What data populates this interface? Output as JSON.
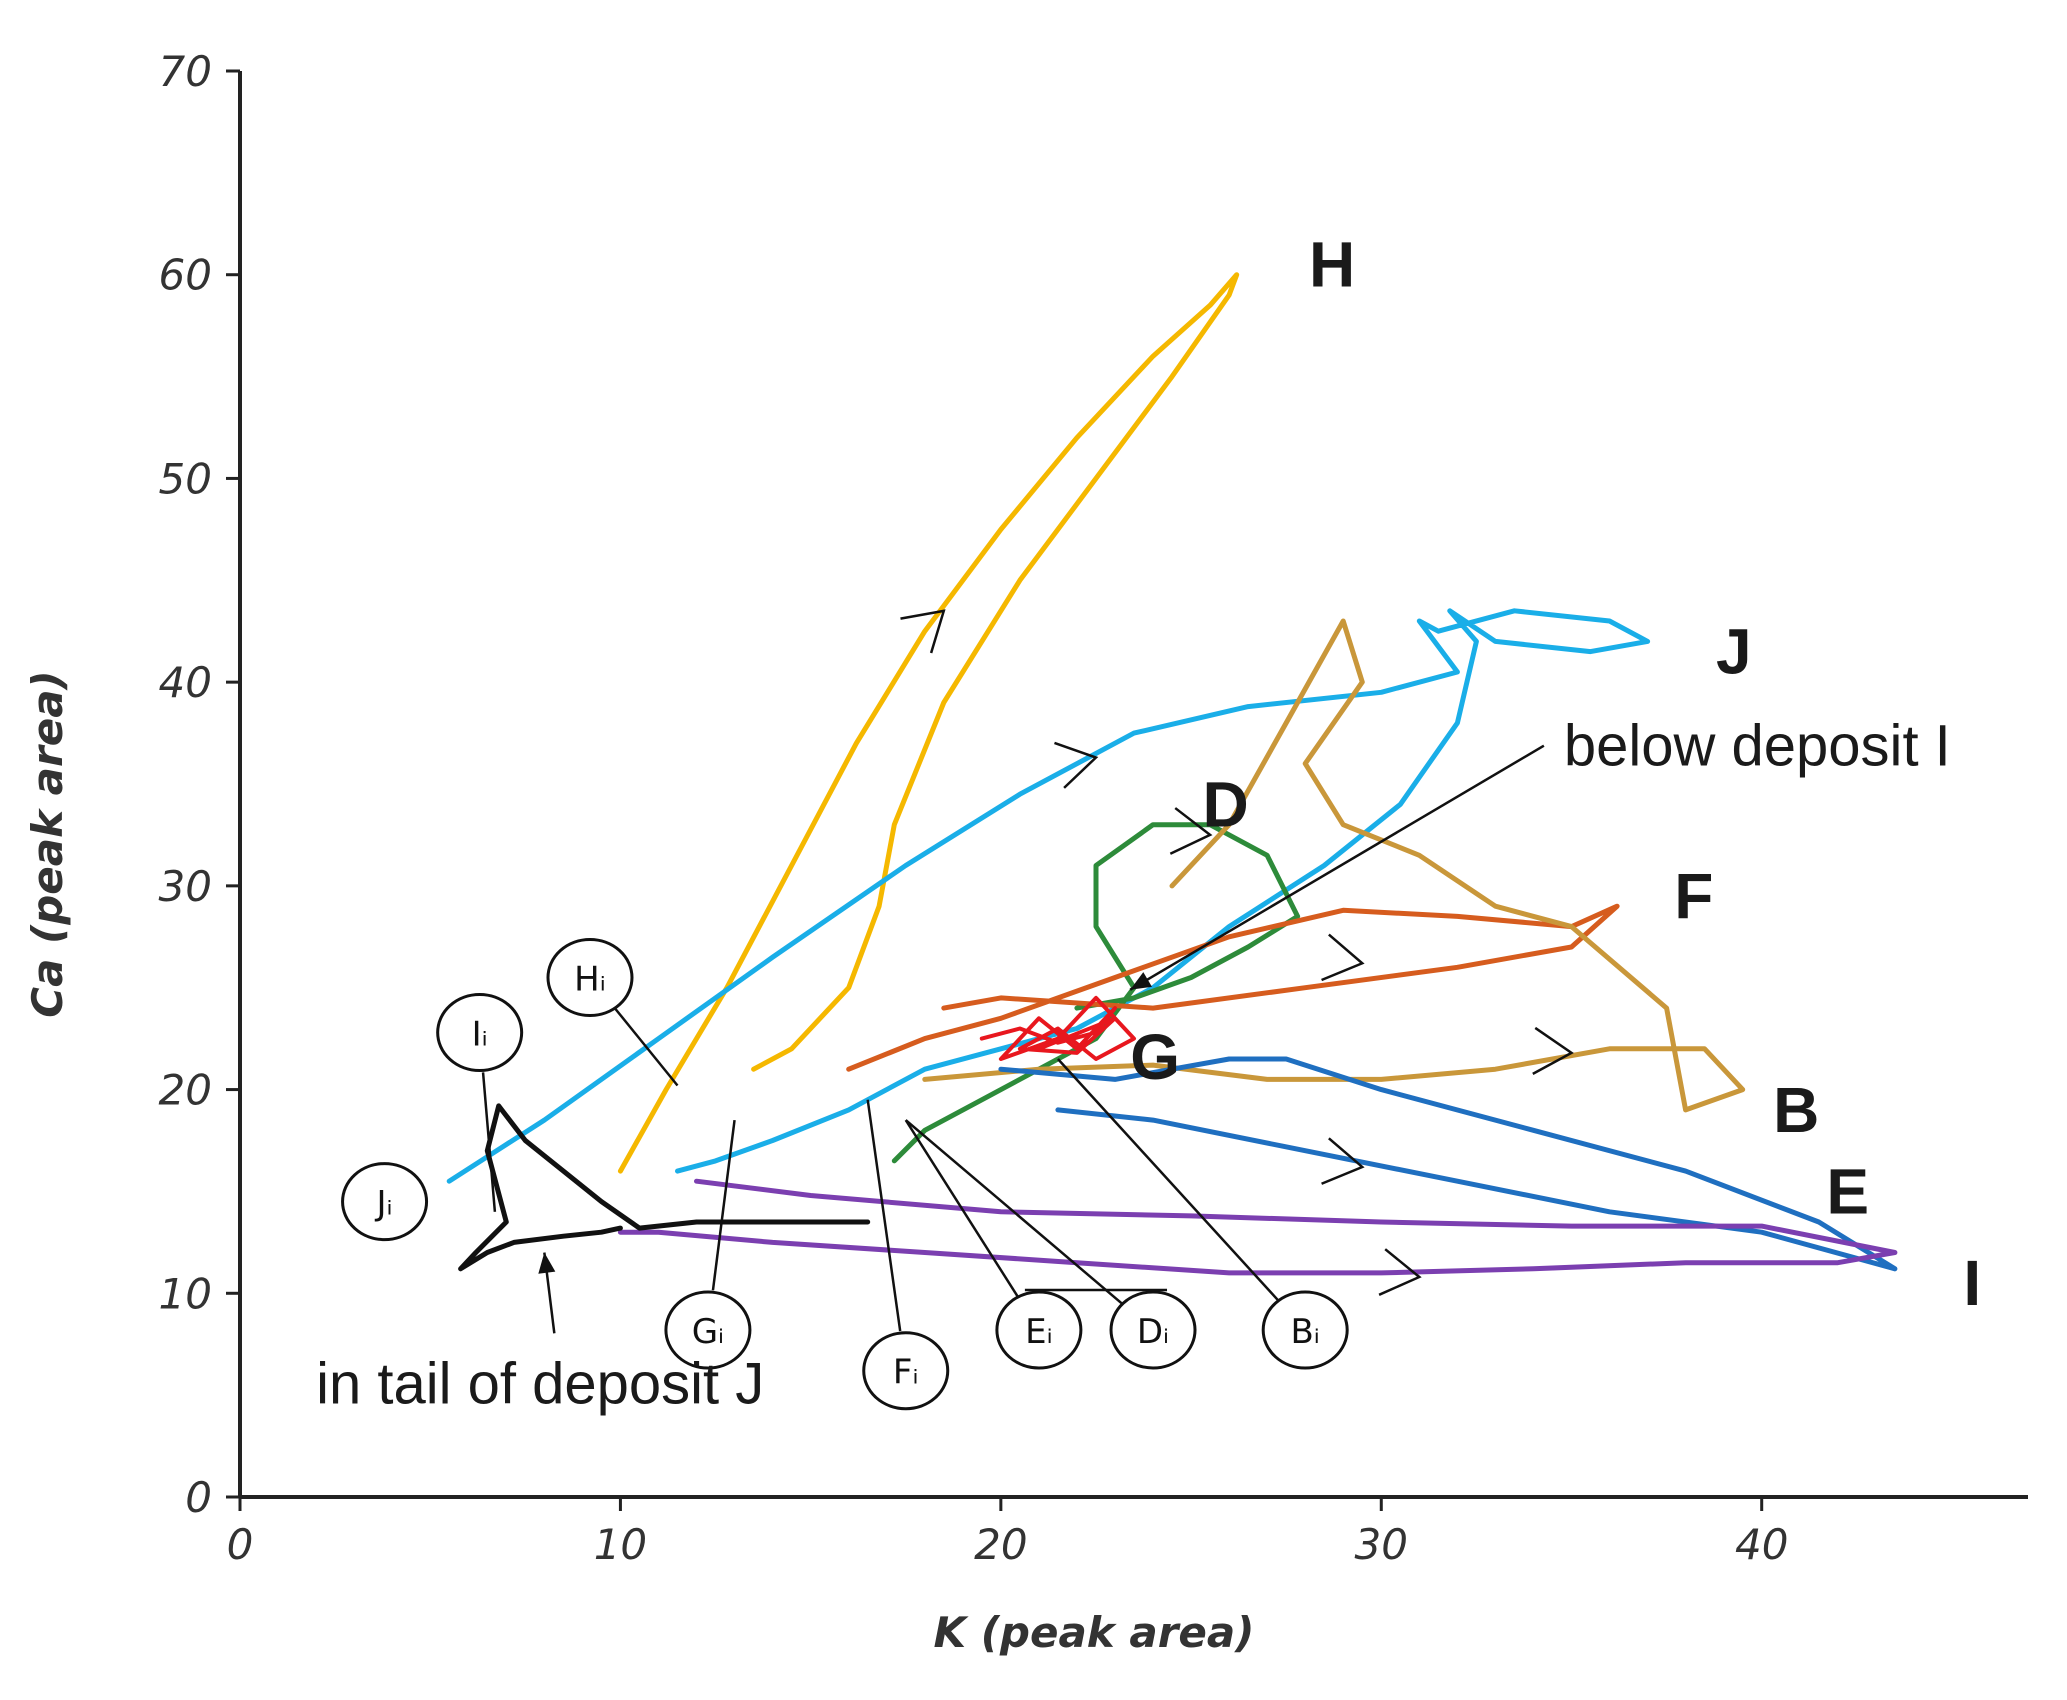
{
  "chart_data": {
    "type": "line",
    "xlabel": "K (peak area)",
    "ylabel": "Ca (peak area)",
    "xlim": [
      0,
      47
    ],
    "ylim": [
      0,
      70
    ],
    "xticks": [
      0,
      10,
      20,
      30,
      40
    ],
    "yticks": [
      0,
      10,
      20,
      30,
      40,
      50,
      60,
      70
    ],
    "grid": false,
    "series": [
      {
        "name": "H",
        "color": "#f5b800",
        "label_at": [
          28.1,
          60.5
        ],
        "x": [
          10.0,
          11.2,
          12.8,
          14.5,
          16.2,
          18.0,
          20.0,
          22.0,
          24.0,
          25.5,
          26.2,
          26.0,
          24.5,
          22.5,
          20.5,
          18.5,
          17.2,
          16.8,
          16.0,
          14.5,
          13.5
        ],
        "y": [
          16.0,
          20.0,
          25.0,
          31.0,
          37.0,
          42.5,
          47.5,
          52.0,
          56.0,
          58.5,
          60.0,
          59.0,
          55.0,
          50.0,
          45.0,
          39.0,
          33.0,
          29.0,
          25.0,
          22.0,
          21.0
        ]
      },
      {
        "name": "J",
        "color": "#1aaee8",
        "label_at": [
          38.8,
          41.5
        ],
        "x": [
          5.5,
          8.0,
          11.0,
          14.0,
          17.5,
          20.5,
          23.5,
          26.5,
          30.0,
          32.0,
          31.0,
          31.5,
          33.5,
          36.0,
          37.0,
          35.5,
          33.0,
          31.8,
          32.5,
          32.0,
          30.5,
          28.5,
          26.0,
          24.0,
          22.0,
          20.0,
          18.0,
          16.0,
          14.0,
          12.5,
          11.5
        ],
        "y": [
          15.5,
          18.5,
          22.5,
          26.5,
          31.0,
          34.5,
          37.5,
          38.8,
          39.5,
          40.5,
          43.0,
          42.5,
          43.5,
          43.0,
          42.0,
          41.5,
          42.0,
          43.5,
          42.0,
          38.0,
          34.0,
          31.0,
          28.0,
          25.0,
          23.0,
          22.0,
          21.0,
          19.0,
          17.5,
          16.5,
          16.0
        ]
      },
      {
        "name": "D",
        "color": "#2d8b3a",
        "label_at": [
          25.3,
          34.0
        ],
        "x": [
          17.2,
          18.0,
          19.5,
          21.0,
          22.5,
          23.5,
          22.5,
          22.5,
          24.0,
          25.5,
          27.0,
          27.8,
          26.5,
          25.0,
          23.5,
          22.0
        ],
        "y": [
          16.5,
          18.0,
          19.5,
          21.0,
          22.5,
          25.0,
          28.0,
          31.0,
          33.0,
          33.0,
          31.5,
          28.5,
          27.0,
          25.5,
          24.5,
          24.0
        ]
      },
      {
        "name": "F",
        "color": "#d65c1e",
        "label_at": [
          37.7,
          29.5
        ],
        "x": [
          16.0,
          18.0,
          20.0,
          23.0,
          26.0,
          29.0,
          32.0,
          35.0,
          36.2,
          35.0,
          32.0,
          28.0,
          24.0,
          20.0,
          18.5
        ],
        "y": [
          21.0,
          22.5,
          23.5,
          25.5,
          27.5,
          28.8,
          28.5,
          28.0,
          29.0,
          27.0,
          26.0,
          25.0,
          24.0,
          24.5,
          24.0
        ]
      },
      {
        "name": "B",
        "color": "#c9973a",
        "label_at": [
          40.3,
          19.0
        ],
        "x": [
          18.0,
          21.0,
          24.0,
          27.0,
          30.0,
          33.0,
          36.0,
          38.5,
          39.5,
          38.0,
          37.5,
          35.0,
          33.0,
          31.0,
          29.0,
          28.0,
          29.5,
          29.0,
          27.5,
          26.0,
          24.5
        ],
        "y": [
          20.5,
          21.0,
          21.2,
          20.5,
          20.5,
          21.0,
          22.0,
          22.0,
          20.0,
          19.0,
          24.0,
          28.0,
          29.0,
          31.5,
          33.0,
          36.0,
          40.0,
          43.0,
          38.0,
          33.0,
          30.0
        ]
      },
      {
        "name": "E",
        "color": "#1f6fc0",
        "label_at": [
          41.7,
          15.0
        ],
        "x": [
          20.0,
          23.0,
          26.0,
          27.5,
          30.0,
          34.0,
          38.0,
          41.5,
          43.5,
          40.0,
          36.0,
          32.0,
          28.0,
          24.0,
          21.5
        ],
        "y": [
          21.0,
          20.5,
          21.5,
          21.5,
          20.0,
          18.0,
          16.0,
          13.5,
          11.2,
          13.0,
          14.0,
          15.5,
          17.0,
          18.5,
          19.0
        ]
      },
      {
        "name": "I",
        "color": "#7b3fb0",
        "label_at": [
          45.3,
          10.5
        ],
        "x": [
          12.0,
          15.0,
          20.0,
          25.0,
          30.0,
          35.0,
          40.0,
          43.5,
          42.0,
          38.0,
          34.0,
          30.0,
          26.0,
          22.0,
          18.0,
          14.0,
          11.0,
          10.0
        ],
        "y": [
          15.5,
          14.8,
          14.0,
          13.8,
          13.5,
          13.3,
          13.3,
          12.0,
          11.5,
          11.5,
          11.2,
          11.0,
          11.0,
          11.5,
          12.0,
          12.5,
          13.0,
          13.0
        ]
      },
      {
        "name": "G",
        "color": "#e8171e",
        "label_at": [
          23.4,
          21.6
        ],
        "x": [
          19.5,
          20.5,
          21.5,
          22.5,
          23.0,
          22.0,
          21.0,
          20.0,
          21.5,
          22.5,
          23.5,
          22.5,
          21.5,
          20.5,
          22.0,
          23.0,
          21.0
        ],
        "y": [
          22.5,
          23.0,
          22.3,
          22.8,
          24.0,
          22.0,
          23.5,
          21.5,
          22.5,
          24.5,
          22.5,
          21.5,
          23.0,
          22.0,
          21.8,
          23.5,
          22.0
        ]
      },
      {
        "name": "J-tail",
        "color": "#111111",
        "label_at": null,
        "x": [
          16.5,
          14.0,
          12.0,
          10.5,
          9.5,
          8.5,
          7.5,
          6.8,
          6.5,
          7.0,
          6.2,
          5.8,
          6.5,
          7.2,
          8.5,
          9.5,
          10.0
        ],
        "y": [
          13.5,
          13.5,
          13.5,
          13.2,
          14.5,
          16.0,
          17.5,
          19.2,
          17.0,
          13.5,
          12.0,
          11.2,
          12.0,
          12.5,
          12.8,
          13.0,
          13.2
        ]
      }
    ],
    "direction_arrows": [
      {
        "series": "H",
        "at": [
          18.5,
          43.5
        ],
        "from": [
          17.0,
          41.0
        ]
      },
      {
        "series": "J",
        "at": [
          22.5,
          36.3
        ],
        "from": [
          20.5,
          35.5
        ]
      },
      {
        "series": "D",
        "at": [
          25.5,
          32.5
        ],
        "from": [
          24.0,
          32.8
        ]
      },
      {
        "series": "F",
        "at": [
          29.5,
          26.2
        ],
        "from": [
          27.5,
          26.8
        ]
      },
      {
        "series": "B",
        "at": [
          35.0,
          21.8
        ],
        "from": [
          33.0,
          22.0
        ]
      },
      {
        "series": "E",
        "at": [
          29.5,
          16.2
        ],
        "from": [
          27.5,
          16.8
        ]
      },
      {
        "series": "I",
        "at": [
          31.0,
          10.8
        ],
        "from": [
          29.0,
          11.3
        ]
      }
    ],
    "initial_labels": [
      {
        "text": "Jᵢ",
        "circle_at": [
          3.8,
          14.5
        ],
        "pointer_to": null
      },
      {
        "text": "Iᵢ",
        "circle_at": [
          6.3,
          22.8
        ],
        "pointer_to": [
          6.7,
          14.0
        ]
      },
      {
        "text": "Hᵢ",
        "circle_at": [
          9.2,
          25.5
        ],
        "pointer_to": [
          11.5,
          20.2
        ]
      },
      {
        "text": "Gᵢ",
        "circle_at": [
          12.3,
          8.2
        ],
        "pointer_to": [
          13.0,
          18.5
        ]
      },
      {
        "text": "Fᵢ",
        "circle_at": [
          17.5,
          6.2
        ],
        "pointer_to": [
          16.5,
          19.5
        ]
      },
      {
        "text": "Eᵢ",
        "circle_at": [
          21.0,
          8.2
        ],
        "pointer_to": [
          17.5,
          18.5
        ]
      },
      {
        "text": "Dᵢ",
        "circle_at": [
          24.0,
          8.2
        ],
        "pointer_to": [
          17.5,
          18.5
        ]
      },
      {
        "text": "Bᵢ",
        "circle_at": [
          28.0,
          8.2
        ],
        "pointer_to": [
          21.5,
          21.5
        ]
      }
    ],
    "annotations": [
      {
        "text": "below deposit I",
        "at": [
          34.8,
          35.9
        ],
        "arrow_to": [
          23.4,
          24.9
        ]
      },
      {
        "text": "in tail of deposit J",
        "at": [
          2.0,
          4.6
        ],
        "arrow_to": [
          8.0,
          12.0
        ]
      }
    ]
  }
}
